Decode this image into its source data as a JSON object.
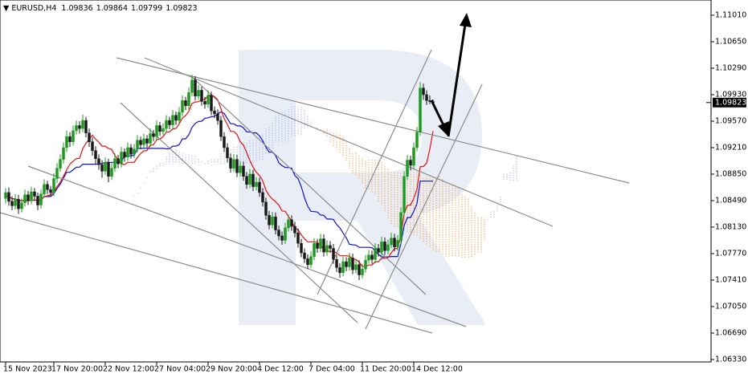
{
  "chart_data": {
    "type": "candlestick",
    "symbol": "EURUSD,H4",
    "candles": [
      [
        1.0852,
        1.0866,
        1.0845,
        1.086
      ],
      [
        1.086,
        1.0867,
        1.0842,
        1.0848
      ],
      [
        1.0848,
        1.0855,
        1.0836,
        1.0842
      ],
      [
        1.0842,
        1.0858,
        1.0837,
        1.0851
      ],
      [
        1.0851,
        1.0857,
        1.0831,
        1.0838
      ],
      [
        1.0838,
        1.0852,
        1.0833,
        1.0846
      ],
      [
        1.0846,
        1.0864,
        1.0841,
        1.0857
      ],
      [
        1.0857,
        1.0862,
        1.0843,
        1.0849
      ],
      [
        1.0849,
        1.0868,
        1.0844,
        1.0861
      ],
      [
        1.0861,
        1.0866,
        1.0849,
        1.0855
      ],
      [
        1.0855,
        1.086,
        1.0836,
        1.0843
      ],
      [
        1.0843,
        1.0864,
        1.0838,
        1.0858
      ],
      [
        1.0858,
        1.0878,
        1.0853,
        1.0871
      ],
      [
        1.0871,
        1.0876,
        1.0858,
        1.0864
      ],
      [
        1.0864,
        1.0869,
        1.0854,
        1.086
      ],
      [
        1.086,
        1.0886,
        1.0855,
        1.0879
      ],
      [
        1.0879,
        1.09,
        1.0873,
        1.0893
      ],
      [
        1.0893,
        1.0912,
        1.0888,
        1.0905
      ],
      [
        1.0905,
        1.0928,
        1.0899,
        1.0921
      ],
      [
        1.0921,
        1.0944,
        1.0915,
        1.0936
      ],
      [
        1.0936,
        1.0942,
        1.0922,
        1.0929
      ],
      [
        1.0929,
        1.0951,
        1.0924,
        1.0944
      ],
      [
        1.0944,
        1.0958,
        1.0939,
        1.0951
      ],
      [
        1.0951,
        1.0957,
        1.094,
        1.0947
      ],
      [
        1.0947,
        1.0966,
        1.0942,
        1.0958
      ],
      [
        1.0958,
        1.0963,
        1.0935,
        1.0941
      ],
      [
        1.0941,
        1.0947,
        1.0922,
        1.0929
      ],
      [
        1.0929,
        1.0935,
        1.091,
        1.0917
      ],
      [
        1.0917,
        1.0923,
        1.0899,
        1.0906
      ],
      [
        1.0906,
        1.0912,
        1.0891,
        1.0898
      ],
      [
        1.0898,
        1.0904,
        1.088,
        1.0889
      ],
      [
        1.0889,
        1.0908,
        1.0884,
        1.0901
      ],
      [
        1.0901,
        1.0906,
        1.0874,
        1.0882
      ],
      [
        1.0882,
        1.09,
        1.0877,
        1.0893
      ],
      [
        1.0893,
        1.0913,
        1.0888,
        1.0906
      ],
      [
        1.0906,
        1.0911,
        1.0893,
        1.0899
      ],
      [
        1.0899,
        1.0922,
        1.0894,
        1.0915
      ],
      [
        1.0915,
        1.092,
        1.0902,
        1.0908
      ],
      [
        1.0908,
        1.0928,
        1.0903,
        1.0921
      ],
      [
        1.0921,
        1.0926,
        1.0906,
        1.0912
      ],
      [
        1.0912,
        1.0926,
        1.0907,
        1.0919
      ],
      [
        1.0919,
        1.0938,
        1.0914,
        1.0931
      ],
      [
        1.0931,
        1.0936,
        1.0919,
        1.0925
      ],
      [
        1.0925,
        1.094,
        1.092,
        1.0933
      ],
      [
        1.0933,
        1.0938,
        1.0921,
        1.0927
      ],
      [
        1.0927,
        1.0947,
        1.0922,
        1.094
      ],
      [
        1.094,
        1.0945,
        1.093,
        1.0936
      ],
      [
        1.0936,
        1.0958,
        1.0931,
        1.0951
      ],
      [
        1.0951,
        1.0956,
        1.0937,
        1.0943
      ],
      [
        1.0943,
        1.0954,
        1.0938,
        1.0947
      ],
      [
        1.0947,
        1.0965,
        1.0942,
        1.0958
      ],
      [
        1.0958,
        1.0963,
        1.0946,
        1.0952
      ],
      [
        1.0952,
        1.0972,
        1.0947,
        1.0965
      ],
      [
        1.0965,
        1.097,
        1.0952,
        1.0958
      ],
      [
        1.0958,
        1.0976,
        1.0953,
        1.0969
      ],
      [
        1.0969,
        1.0992,
        1.0964,
        1.0985
      ],
      [
        1.0985,
        1.099,
        1.0972,
        1.0978
      ],
      [
        1.0978,
        1.1003,
        1.0973,
        1.0996
      ],
      [
        1.0996,
        1.102,
        1.0991,
        1.1013
      ],
      [
        1.1013,
        1.1018,
        1.0985,
        1.0991
      ],
      [
        1.0991,
        1.1006,
        1.0986,
        1.0999
      ],
      [
        1.0999,
        1.1004,
        1.0978,
        1.0984
      ],
      [
        1.0984,
        1.099,
        1.0974,
        1.098
      ],
      [
        1.098,
        1.0999,
        1.0975,
        1.0992
      ],
      [
        1.0992,
        1.0997,
        1.0965,
        1.0971
      ],
      [
        1.0971,
        1.0977,
        1.0961,
        1.0967
      ],
      [
        1.0967,
        1.0973,
        1.0952,
        1.0958
      ],
      [
        1.0958,
        1.0964,
        1.093,
        1.0936
      ],
      [
        1.0936,
        1.0942,
        1.0915,
        1.0921
      ],
      [
        1.0921,
        1.0927,
        1.0901,
        1.0907
      ],
      [
        1.0907,
        1.0913,
        1.0887,
        1.0893
      ],
      [
        1.0893,
        1.0912,
        1.0888,
        1.0905
      ],
      [
        1.0905,
        1.0911,
        1.0881,
        1.0887
      ],
      [
        1.0887,
        1.0903,
        1.0882,
        1.0896
      ],
      [
        1.0896,
        1.0902,
        1.0876,
        1.0882
      ],
      [
        1.0882,
        1.0888,
        1.0865,
        1.0871
      ],
      [
        1.0871,
        1.0892,
        1.0866,
        1.0885
      ],
      [
        1.0885,
        1.0891,
        1.0862,
        1.0868
      ],
      [
        1.0868,
        1.0881,
        1.0863,
        1.0874
      ],
      [
        1.0874,
        1.088,
        1.0854,
        1.086
      ],
      [
        1.086,
        1.0866,
        1.0841,
        1.0847
      ],
      [
        1.0847,
        1.0853,
        1.0823,
        1.0829
      ],
      [
        1.0829,
        1.0835,
        1.081,
        1.0816
      ],
      [
        1.0816,
        1.0834,
        1.0811,
        1.0827
      ],
      [
        1.0827,
        1.0833,
        1.0803,
        1.0809
      ],
      [
        1.0809,
        1.0815,
        1.0795,
        1.0801
      ],
      [
        1.0801,
        1.0807,
        1.0789,
        1.0795
      ],
      [
        1.0795,
        1.0819,
        1.079,
        1.0812
      ],
      [
        1.0812,
        1.083,
        1.0807,
        1.0823
      ],
      [
        1.0823,
        1.0829,
        1.0808,
        1.0814
      ],
      [
        1.0814,
        1.082,
        1.0799,
        1.0805
      ],
      [
        1.0805,
        1.0811,
        1.0785,
        1.0791
      ],
      [
        1.0791,
        1.0797,
        1.0772,
        1.0778
      ],
      [
        1.0778,
        1.0784,
        1.0764,
        1.077
      ],
      [
        1.077,
        1.0776,
        1.0756,
        1.0762
      ],
      [
        1.0762,
        1.078,
        1.0757,
        1.0773
      ],
      [
        1.0773,
        1.0798,
        1.0768,
        1.0791
      ],
      [
        1.0791,
        1.0797,
        1.0778,
        1.0784
      ],
      [
        1.0784,
        1.0804,
        1.0779,
        1.0797
      ],
      [
        1.0797,
        1.0803,
        1.0773,
        1.0779
      ],
      [
        1.0779,
        1.0795,
        1.0774,
        1.0788
      ],
      [
        1.0788,
        1.0794,
        1.0778,
        1.0784
      ],
      [
        1.0784,
        1.079,
        1.0763,
        1.0769
      ],
      [
        1.0769,
        1.0775,
        1.0752,
        1.0758
      ],
      [
        1.0758,
        1.0764,
        1.0744,
        1.0751
      ],
      [
        1.0751,
        1.0773,
        1.0746,
        1.0766
      ],
      [
        1.0766,
        1.0772,
        1.0753,
        1.0759
      ],
      [
        1.0759,
        1.0778,
        1.0754,
        1.0771
      ],
      [
        1.0771,
        1.0777,
        1.0749,
        1.0755
      ],
      [
        1.0755,
        1.0769,
        1.075,
        1.0762
      ],
      [
        1.0762,
        1.0768,
        1.0741,
        1.0748
      ],
      [
        1.0748,
        1.0763,
        1.0743,
        1.0756
      ],
      [
        1.0756,
        1.0775,
        1.0751,
        1.0768
      ],
      [
        1.0768,
        1.0782,
        1.0763,
        1.0775
      ],
      [
        1.0775,
        1.0781,
        1.0763,
        1.0769
      ],
      [
        1.0769,
        1.0791,
        1.0764,
        1.0784
      ],
      [
        1.0784,
        1.079,
        1.0773,
        1.0779
      ],
      [
        1.0779,
        1.08,
        1.0774,
        1.0793
      ],
      [
        1.0793,
        1.0799,
        1.0775,
        1.0781
      ],
      [
        1.0781,
        1.0796,
        1.0776,
        1.0789
      ],
      [
        1.0789,
        1.0805,
        1.0784,
        1.0798
      ],
      [
        1.0798,
        1.0804,
        1.078,
        1.0786
      ],
      [
        1.0786,
        1.0802,
        1.0781,
        1.0795
      ],
      [
        1.0795,
        1.084,
        1.079,
        1.0833
      ],
      [
        1.0833,
        1.0889,
        1.0828,
        1.0882
      ],
      [
        1.0882,
        1.0911,
        1.0877,
        1.0904
      ],
      [
        1.0904,
        1.091,
        1.089,
        1.0897
      ],
      [
        1.0897,
        1.0928,
        1.0892,
        1.0921
      ],
      [
        1.0921,
        1.0949,
        1.0916,
        1.0942
      ],
      [
        1.0942,
        1.101,
        1.0937,
        1.1002
      ],
      [
        1.1002,
        1.1008,
        1.0986,
        1.0993
      ],
      [
        1.0993,
        1.0999,
        1.0979,
        1.0985
      ],
      [
        1.0985,
        1.0992,
        1.098,
        1.09836
      ],
      [
        1.09836,
        1.09864,
        1.09799,
        1.09823
      ]
    ],
    "up_color": "#1f9a1f",
    "down_color": "#1a1a1a",
    "xlim": [
      -1.75,
      219.5
    ],
    "xticks": [
      {
        "value": 0,
        "label": "15 Nov 2023"
      },
      {
        "value": 15,
        "label": "17 Nov 20:00"
      },
      {
        "value": 31,
        "label": "22 Nov 12:00"
      },
      {
        "value": 47,
        "label": "27 Nov 04:00"
      },
      {
        "value": 63,
        "label": "29 Nov 20:00"
      },
      {
        "value": 79,
        "label": "4 Dec 12:00"
      },
      {
        "value": 95,
        "label": "7 Dec 04:00"
      },
      {
        "value": 111,
        "label": "11 Dec 20:00"
      },
      {
        "value": 127,
        "label": "14 Dec 12:00"
      }
    ],
    "ylim": [
      1.06297,
      1.11217
    ],
    "yticks": [
      {
        "value": 1.1101,
        "label": "1.11010"
      },
      {
        "value": 1.1065,
        "label": "1.10650"
      },
      {
        "value": 1.1029,
        "label": "1.10290"
      },
      {
        "value": 1.0993,
        "label": "1.09930"
      },
      {
        "value": 1.0957,
        "label": "1.09570"
      },
      {
        "value": 1.0921,
        "label": "1.09210"
      },
      {
        "value": 1.0885,
        "label": "1.08850"
      },
      {
        "value": 1.0849,
        "label": "1.08490"
      },
      {
        "value": 1.0813,
        "label": "1.08130"
      },
      {
        "value": 1.0777,
        "label": "1.07770"
      },
      {
        "value": 1.0741,
        "label": "1.07410"
      },
      {
        "value": 1.0705,
        "label": "1.07050"
      },
      {
        "value": 1.0669,
        "label": "1.06690"
      },
      {
        "value": 1.0633,
        "label": "1.06330"
      }
    ],
    "grid": false
  }
}
